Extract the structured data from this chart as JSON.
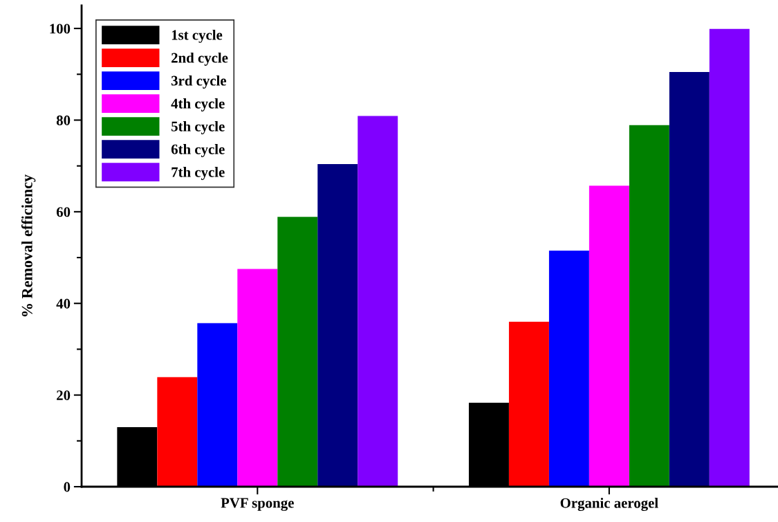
{
  "chart_data": {
    "type": "bar",
    "ylabel": "% Removal efficiency",
    "categories": [
      "PVF sponge",
      "Organic aerogel"
    ],
    "series": [
      {
        "name": "1st cycle",
        "color": "#000000",
        "values": [
          13.0,
          18.3
        ]
      },
      {
        "name": "2nd cycle",
        "color": "#ff0000",
        "values": [
          23.9,
          36.0
        ]
      },
      {
        "name": "3rd cycle",
        "color": "#0000ff",
        "values": [
          35.7,
          51.5
        ]
      },
      {
        "name": "4th cycle",
        "color": "#ff00ff",
        "values": [
          47.5,
          65.7
        ]
      },
      {
        "name": "5th cycle",
        "color": "#008000",
        "values": [
          58.9,
          78.9
        ]
      },
      {
        "name": "6th cycle",
        "color": "#000080",
        "values": [
          70.4,
          90.5
        ]
      },
      {
        "name": "7th cycle",
        "color": "#8000ff",
        "values": [
          80.9,
          99.9
        ]
      }
    ],
    "ylim": [
      0,
      105
    ],
    "yticks": [
      0,
      20,
      40,
      60,
      80,
      100
    ],
    "grid": false,
    "legend": "top left"
  }
}
